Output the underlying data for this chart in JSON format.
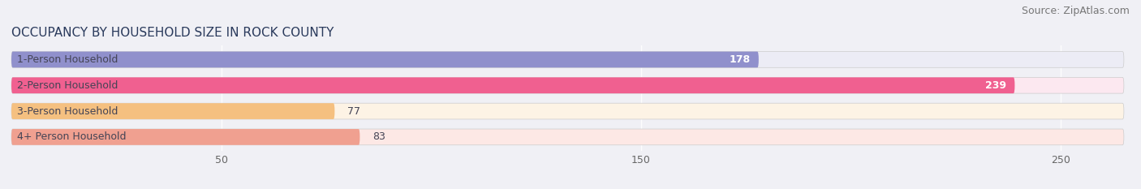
{
  "title": "OCCUPANCY BY HOUSEHOLD SIZE IN ROCK COUNTY",
  "source": "Source: ZipAtlas.com",
  "categories": [
    "1-Person Household",
    "2-Person Household",
    "3-Person Household",
    "4+ Person Household"
  ],
  "values": [
    178,
    239,
    77,
    83
  ],
  "bar_colors": [
    "#9090cc",
    "#f06090",
    "#f5c080",
    "#f0a090"
  ],
  "bar_bg_colors": [
    "#ececf5",
    "#fce8f0",
    "#fdf3e5",
    "#fde8e5"
  ],
  "text_color": "#444455",
  "xlim": [
    0,
    265
  ],
  "xticks": [
    50,
    150,
    250
  ],
  "title_fontsize": 11,
  "source_fontsize": 9,
  "label_fontsize": 9,
  "value_fontsize": 9,
  "background_color": "#f0f0f5",
  "bar_height": 0.62,
  "figsize": [
    14.06,
    2.33
  ],
  "dpi": 100
}
